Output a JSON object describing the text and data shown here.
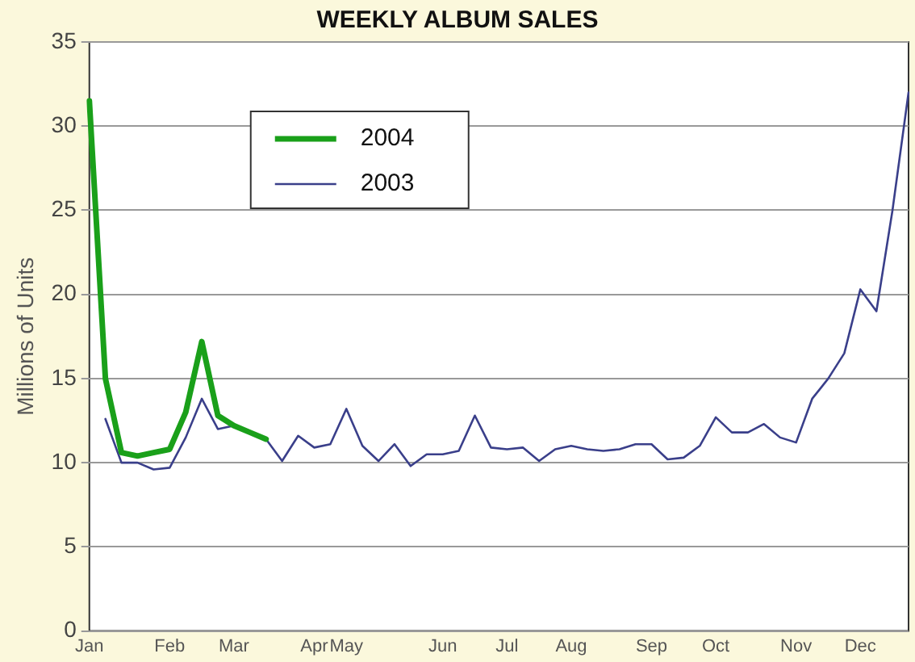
{
  "chart_data": {
    "type": "line",
    "title": "WEEKLY ALBUM SALES",
    "ylabel": "Millions of Units",
    "categories": [
      "Jan",
      null,
      null,
      null,
      null,
      "Feb",
      null,
      null,
      null,
      "Mar",
      null,
      null,
      null,
      null,
      "Apr",
      null,
      "May",
      null,
      null,
      null,
      null,
      null,
      "Jun",
      null,
      null,
      null,
      "Jul",
      null,
      null,
      null,
      "Aug",
      null,
      null,
      null,
      null,
      "Sep",
      null,
      null,
      null,
      "Oct",
      null,
      null,
      null,
      null,
      "Nov",
      null,
      null,
      null,
      "Dec",
      null,
      null,
      null
    ],
    "series": [
      {
        "name": "2004",
        "color": "#1aa01a",
        "values": [
          31.5,
          15,
          10.6,
          10.4,
          10.6,
          10.8,
          13,
          17.2,
          12.8,
          12.2,
          11.8,
          11.4,
          null,
          null,
          null,
          null,
          null,
          null,
          null,
          null,
          null,
          null,
          null,
          null,
          null,
          null,
          null,
          null,
          null,
          null,
          null,
          null,
          null,
          null,
          null,
          null,
          null,
          null,
          null,
          null,
          null,
          null,
          null,
          null,
          null,
          null,
          null,
          null,
          null,
          null,
          null,
          null
        ]
      },
      {
        "name": "2003",
        "color": "#3a3f8a",
        "values": [
          null,
          12.6,
          10,
          10,
          9.6,
          9.7,
          11.5,
          13.8,
          12,
          12.2,
          null,
          11.4,
          10.1,
          11.6,
          10.9,
          11.1,
          13.2,
          11,
          10.1,
          11.1,
          9.8,
          10.5,
          10.5,
          10.7,
          12.8,
          10.9,
          10.8,
          10.9,
          10.1,
          10.8,
          11,
          10.8,
          10.7,
          10.8,
          11.1,
          11.1,
          10.2,
          10.3,
          11,
          12.7,
          11.8,
          11.8,
          12.3,
          11.5,
          11.2,
          13.8,
          15,
          16.5,
          20.3,
          19,
          25,
          32
        ]
      }
    ],
    "ylim": [
      0,
      35
    ],
    "yticks": [
      0,
      5,
      10,
      15,
      20,
      25,
      30,
      35
    ],
    "grid": "y",
    "legend": "top left",
    "marker": "none",
    "line_style": "solid"
  }
}
